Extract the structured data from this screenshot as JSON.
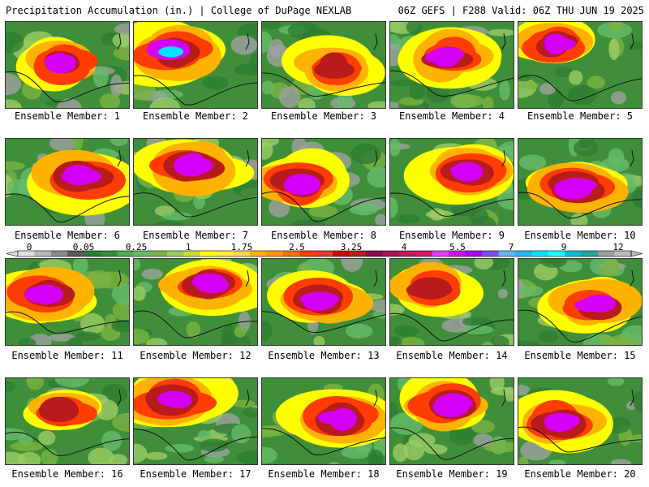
{
  "header": {
    "left": "Precipitation Accumulation (in.) | College of DuPage NEXLAB",
    "right": "06Z GEFS | F288 Valid: 06Z THU JUN 19 2025"
  },
  "caption_prefix": "Ensemble Member:",
  "members": [
    {
      "number": "1",
      "intensity": 0.55,
      "peak": "light-purple"
    },
    {
      "number": "2",
      "intensity": 0.85,
      "peak": "cyan"
    },
    {
      "number": "3",
      "intensity": 0.45,
      "peak": "red"
    },
    {
      "number": "4",
      "intensity": 0.6,
      "peak": "magenta"
    },
    {
      "number": "5",
      "intensity": 0.55,
      "peak": "magenta"
    },
    {
      "number": "6",
      "intensity": 0.75,
      "peak": "light-purple"
    },
    {
      "number": "7",
      "intensity": 0.7,
      "peak": "light-purple"
    },
    {
      "number": "8",
      "intensity": 0.7,
      "peak": "cyan"
    },
    {
      "number": "9",
      "intensity": 0.65,
      "peak": "cyan"
    },
    {
      "number": "10",
      "intensity": 0.7,
      "peak": "cyan"
    },
    {
      "number": "11",
      "intensity": 0.65,
      "peak": "cyan"
    },
    {
      "number": "12",
      "intensity": 0.65,
      "peak": "light-purple"
    },
    {
      "number": "13",
      "intensity": 0.65,
      "peak": "cyan"
    },
    {
      "number": "14",
      "intensity": 0.45,
      "peak": "red"
    },
    {
      "number": "15",
      "intensity": 0.55,
      "peak": "magenta"
    },
    {
      "number": "16",
      "intensity": 0.45,
      "peak": "red"
    },
    {
      "number": "17",
      "intensity": 0.7,
      "peak": "light-purple"
    },
    {
      "number": "18",
      "intensity": 0.75,
      "peak": "cyan"
    },
    {
      "number": "19",
      "intensity": 0.7,
      "peak": "cyan"
    },
    {
      "number": "20",
      "intensity": 0.65,
      "peak": "cyan"
    }
  ],
  "colorbar": {
    "labels": [
      "0",
      "0.05",
      "0.25",
      "1",
      "1.75",
      "2.5",
      "3.25",
      "4",
      "5.5",
      "7",
      "9",
      "12"
    ],
    "colors": [
      "#e0e0e0",
      "#b8b8b8",
      "#8c8c8c",
      "#5a5a5a",
      "#2e7d32",
      "#388e3c",
      "#4caf50",
      "#66bb6a",
      "#7cb342",
      "#9ccc65",
      "#cddc39",
      "#ffff00",
      "#ffeb3b",
      "#ffd54f",
      "#ffb300",
      "#ff9800",
      "#ff6f00",
      "#ff3d00",
      "#e53935",
      "#d50000",
      "#b71c1c",
      "#880e4f",
      "#ad1457",
      "#c2185b",
      "#d81b60",
      "#e040fb",
      "#d500f9",
      "#aa00ff",
      "#7c4dff",
      "#64b5f6",
      "#29b6f6",
      "#00e5ff",
      "#18ffff",
      "#00bcd4",
      "#26a69a",
      "#9e9e9e",
      "#bdbdbd"
    ]
  }
}
